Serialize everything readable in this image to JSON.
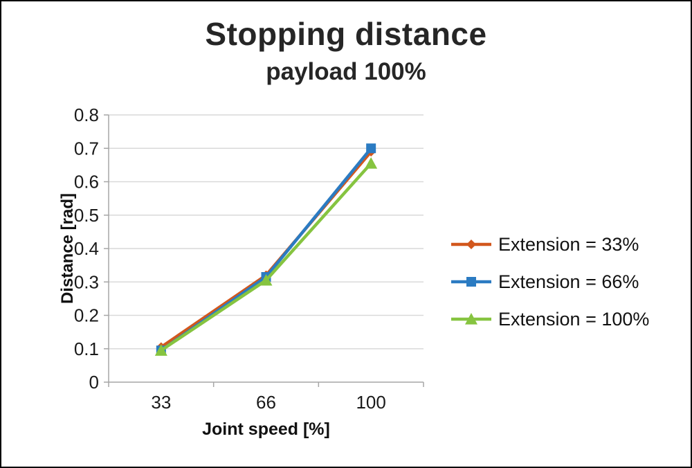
{
  "chart_data": {
    "type": "line",
    "title": "Stopping distance",
    "subtitle": "payload 100%",
    "xlabel": "Joint speed [%]",
    "ylabel": "Distance [rad]",
    "categories": [
      "33",
      "66",
      "100"
    ],
    "series": [
      {
        "name": "Extension = 33%",
        "marker": "diamond",
        "color": "#d2571d",
        "values": [
          0.105,
          0.32,
          0.69
        ]
      },
      {
        "name": "Extension = 66%",
        "marker": "square",
        "color": "#2b7bc2",
        "values": [
          0.095,
          0.315,
          0.7
        ]
      },
      {
        "name": "Extension = 100%",
        "marker": "triangle",
        "color": "#86c440",
        "values": [
          0.095,
          0.305,
          0.655
        ]
      }
    ],
    "ylim": [
      0,
      0.8
    ],
    "yticks": [
      "0",
      "0.1",
      "0.2",
      "0.3",
      "0.4",
      "0.5",
      "0.6",
      "0.7",
      "0.8"
    ],
    "grid": true,
    "legend_position": "right",
    "colors": {
      "gridline": "#d9d9d9",
      "axis": "#a6a6a6",
      "tick_text": "#1a1a1a",
      "title_text": "#262626"
    }
  }
}
